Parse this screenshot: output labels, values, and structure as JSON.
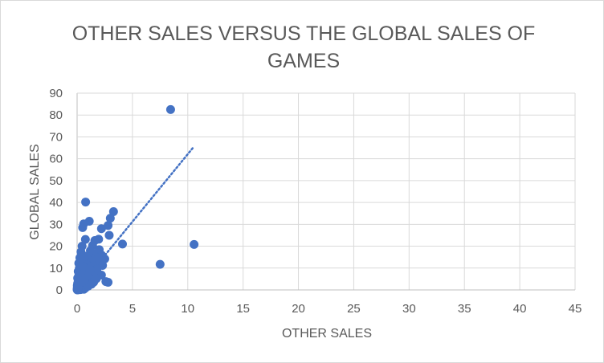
{
  "chart_data": {
    "type": "scatter",
    "title_lines": [
      "OTHER SALES VERSUS THE GLOBAL SALES OF",
      "GAMES"
    ],
    "xlabel": "OTHER SALES",
    "ylabel": "GLOBAL SALES",
    "xlim": [
      0,
      45
    ],
    "ylim": [
      0,
      90
    ],
    "x_ticks": [
      0,
      5,
      10,
      15,
      20,
      25,
      30,
      35,
      40,
      45
    ],
    "y_ticks": [
      0,
      10,
      20,
      30,
      40,
      50,
      60,
      70,
      80,
      90
    ],
    "grid": true,
    "legend": "none",
    "trendline": {
      "style": "dotted",
      "x": [
        0,
        10.5
      ],
      "y": [
        0.3,
        65.2
      ]
    },
    "marker_color": "#4472c4",
    "series": [
      {
        "points": [
          [
            8.45,
            82.5
          ],
          [
            10.57,
            20.8
          ],
          [
            7.5,
            11.7
          ],
          [
            0.77,
            40.2
          ],
          [
            3.29,
            35.8
          ],
          [
            3.0,
            32.8
          ],
          [
            1.1,
            31.4
          ],
          [
            0.6,
            30.2
          ],
          [
            2.8,
            29.5
          ],
          [
            0.5,
            28.5
          ],
          [
            2.2,
            28.0
          ],
          [
            2.9,
            25.0
          ],
          [
            0.75,
            23.1
          ],
          [
            1.6,
            22.6
          ],
          [
            1.95,
            23.2
          ],
          [
            4.1,
            21.0
          ],
          [
            0.45,
            20.0
          ],
          [
            1.4,
            20.3
          ],
          [
            1.2,
            18.0
          ],
          [
            2.0,
            18.4
          ],
          [
            0.35,
            17.4
          ],
          [
            1.5,
            16.5
          ],
          [
            2.2,
            16.0
          ],
          [
            0.8,
            15.4
          ],
          [
            1.7,
            15.0
          ],
          [
            2.5,
            14.2
          ],
          [
            0.25,
            14.7
          ],
          [
            1.0,
            13.8
          ],
          [
            2.0,
            13.2
          ],
          [
            1.3,
            12.9
          ],
          [
            0.15,
            12.2
          ],
          [
            0.6,
            12.5
          ],
          [
            1.8,
            12.0
          ],
          [
            0.9,
            11.5
          ],
          [
            2.3,
            11.2
          ],
          [
            0.4,
            11.0
          ],
          [
            1.45,
            10.8
          ],
          [
            1.1,
            10.2
          ],
          [
            0.2,
            10.0
          ],
          [
            0.7,
            9.8
          ],
          [
            1.8,
            9.5
          ],
          [
            0.5,
            9.0
          ],
          [
            1.25,
            8.8
          ],
          [
            0.1,
            8.5
          ],
          [
            0.85,
            8.3
          ],
          [
            1.6,
            8.0
          ],
          [
            0.3,
            7.7
          ],
          [
            1.05,
            7.5
          ],
          [
            0.6,
            7.0
          ],
          [
            2.2,
            6.8
          ],
          [
            0.15,
            6.5
          ],
          [
            1.4,
            6.3
          ],
          [
            0.45,
            6.0
          ],
          [
            0.95,
            5.7
          ],
          [
            0.05,
            5.4
          ],
          [
            1.75,
            5.2
          ],
          [
            0.3,
            5.0
          ],
          [
            0.7,
            4.8
          ],
          [
            1.2,
            4.5
          ],
          [
            0.1,
            4.2
          ],
          [
            0.5,
            4.0
          ],
          [
            2.6,
            3.8
          ],
          [
            1.5,
            3.6
          ],
          [
            0.2,
            3.4
          ],
          [
            0.9,
            3.2
          ],
          [
            0.05,
            3.0
          ],
          [
            2.8,
            3.5
          ],
          [
            0.4,
            2.8
          ],
          [
            1.3,
            2.6
          ],
          [
            0.15,
            2.4
          ],
          [
            0.65,
            2.2
          ],
          [
            0.02,
            2.0
          ],
          [
            0.35,
            1.8
          ],
          [
            1.0,
            1.7
          ],
          [
            0.1,
            1.5
          ],
          [
            0.5,
            1.3
          ],
          [
            0.02,
            1.2
          ],
          [
            0.25,
            1.0
          ],
          [
            0.75,
            0.9
          ],
          [
            0.05,
            0.8
          ],
          [
            0.4,
            0.6
          ],
          [
            0.12,
            0.5
          ],
          [
            0.01,
            0.4
          ],
          [
            0.2,
            0.3
          ],
          [
            0.6,
            0.3
          ],
          [
            0.05,
            0.2
          ],
          [
            0.3,
            0.15
          ],
          [
            0.01,
            0.1
          ],
          [
            0.1,
            0.05
          ],
          [
            0.02,
            0.02
          ],
          [
            0.15,
            2.9
          ],
          [
            0.45,
            3.7
          ],
          [
            0.8,
            6.1
          ],
          [
            1.15,
            9.1
          ],
          [
            0.35,
            8.1
          ],
          [
            0.55,
            10.6
          ],
          [
            1.9,
            14.6
          ],
          [
            0.25,
            6.9
          ],
          [
            0.65,
            4.4
          ],
          [
            0.08,
            1.0
          ]
        ]
      }
    ]
  }
}
